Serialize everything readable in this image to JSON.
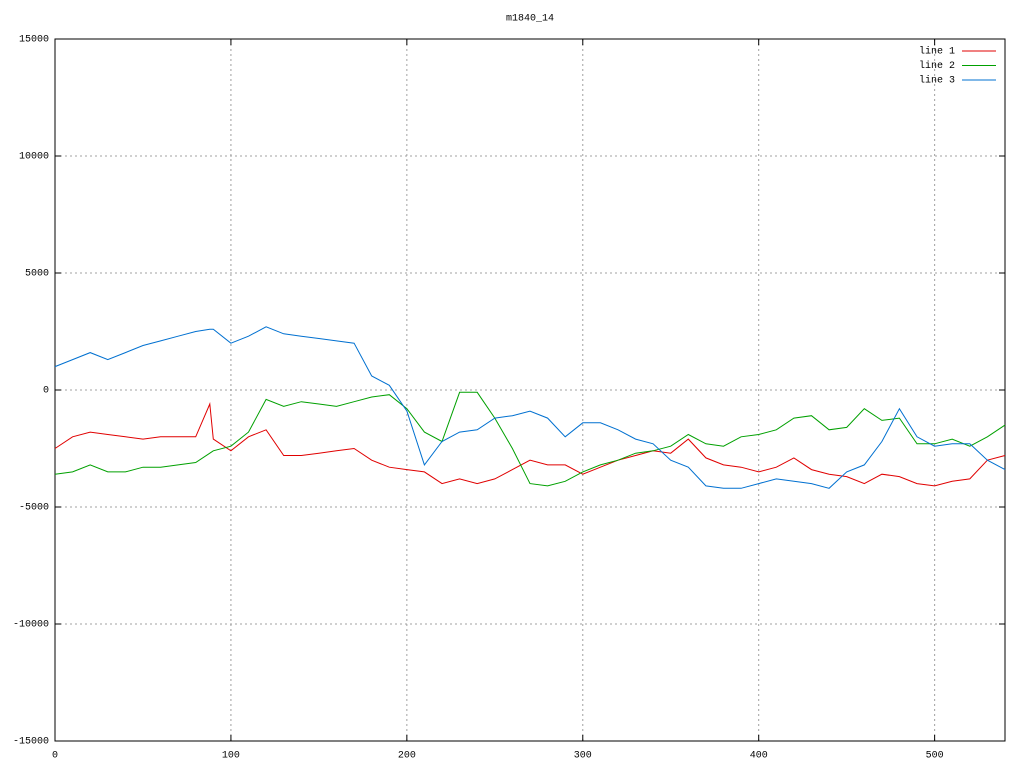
{
  "chart_data": {
    "type": "line",
    "title": "m1840_14",
    "x": [
      0,
      10,
      20,
      30,
      40,
      50,
      60,
      70,
      80,
      88,
      90,
      100,
      110,
      120,
      130,
      140,
      150,
      160,
      170,
      180,
      190,
      200,
      210,
      220,
      230,
      240,
      250,
      260,
      270,
      280,
      290,
      300,
      310,
      320,
      330,
      340,
      350,
      360,
      370,
      380,
      390,
      400,
      410,
      420,
      430,
      440,
      450,
      460,
      470,
      480,
      490,
      500,
      510,
      520,
      530,
      540
    ],
    "series": [
      {
        "name": "line 1",
        "color": "#e00000",
        "values": [
          -2500,
          -2000,
          -1800,
          -1900,
          -2000,
          -2100,
          -2000,
          -2000,
          -2000,
          -600,
          -2100,
          -2600,
          -2000,
          -1700,
          -2800,
          -2800,
          -2700,
          -2600,
          -2500,
          -3000,
          -3300,
          -3400,
          -3500,
          -4000,
          -3800,
          -4000,
          -3800,
          -3400,
          -3000,
          -3200,
          -3200,
          -3600,
          -3300,
          -3000,
          -2800,
          -2600,
          -2700,
          -2100,
          -2900,
          -3200,
          -3300,
          -3500,
          -3300,
          -2900,
          -3400,
          -3600,
          -3700,
          -4000,
          -3600,
          -3700,
          -4000,
          -4100,
          -3900,
          -3800,
          -3000,
          -2800
        ]
      },
      {
        "name": "line 2",
        "color": "#00a000",
        "values": [
          -3600,
          -3500,
          -3200,
          -3500,
          -3500,
          -3300,
          -3300,
          -3200,
          -3100,
          -2700,
          -2600,
          -2400,
          -1800,
          -400,
          -700,
          -500,
          -600,
          -700,
          -500,
          -300,
          -200,
          -800,
          -1800,
          -2200,
          -100,
          -100,
          -1200,
          -2500,
          -4000,
          -4100,
          -3900,
          -3500,
          -3200,
          -3000,
          -2700,
          -2600,
          -2400,
          -1900,
          -2300,
          -2400,
          -2000,
          -1900,
          -1700,
          -1200,
          -1100,
          -1700,
          -1600,
          -800,
          -1300,
          -1200,
          -2300,
          -2300,
          -2100,
          -2400,
          -2000,
          -1500
        ]
      },
      {
        "name": "line 3",
        "color": "#0070d0",
        "values": [
          1000,
          1300,
          1600,
          1300,
          1600,
          1900,
          2100,
          2300,
          2500,
          2600,
          2600,
          2000,
          2300,
          2700,
          2400,
          2300,
          2200,
          2100,
          2000,
          600,
          200,
          -900,
          -3200,
          -2200,
          -1800,
          -1700,
          -1200,
          -1100,
          -900,
          -1200,
          -2000,
          -1400,
          -1400,
          -1700,
          -2100,
          -2300,
          -3000,
          -3300,
          -4100,
          -4200,
          -4200,
          -4000,
          -3800,
          -3900,
          -4000,
          -4200,
          -3500,
          -3200,
          -2200,
          -800,
          -2000,
          -2400,
          -2300,
          -2300,
          -3000,
          -3400
        ]
      }
    ],
    "xlim": [
      0,
      540
    ],
    "ylim": [
      -15000,
      15000
    ],
    "xticks": [
      0,
      100,
      200,
      300,
      400,
      500
    ],
    "yticks": [
      -15000,
      -10000,
      -5000,
      0,
      5000,
      10000,
      15000
    ],
    "grid": true,
    "legend": "top-right"
  }
}
